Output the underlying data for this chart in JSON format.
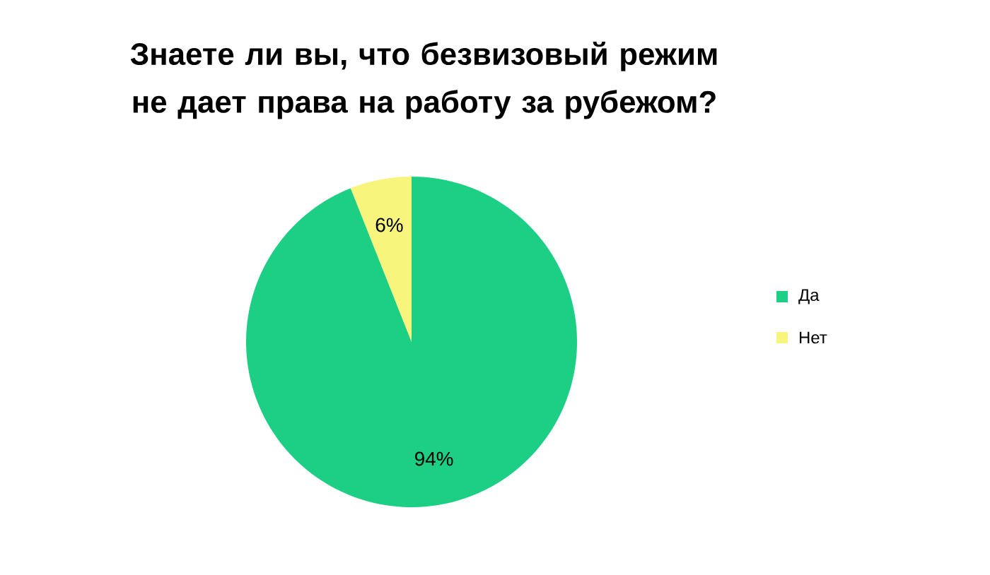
{
  "chart_data": {
    "type": "pie",
    "title": "Знаете ли вы, что безвизовый режим не дает права на работу за рубежом?",
    "categories": [
      "Да",
      "Нет"
    ],
    "values": [
      94,
      6
    ],
    "value_labels": [
      "94%",
      "6%"
    ],
    "colors": [
      "#1ccf84",
      "#f7f57c"
    ],
    "legend": "right"
  }
}
